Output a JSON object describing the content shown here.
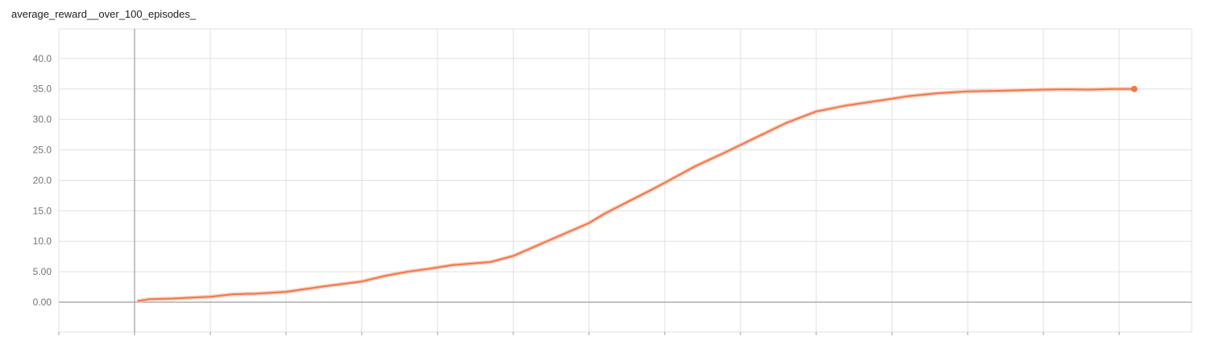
{
  "chart_data": {
    "type": "line",
    "title": "average_reward__over_100_episodes_",
    "xlabel": "",
    "ylabel": "",
    "ylim": [
      -5,
      45
    ],
    "yticks": [
      "0.00",
      "5.00",
      "10.0",
      "15.0",
      "20.0",
      "25.0",
      "30.0",
      "35.0",
      "40.0"
    ],
    "xlim": [
      -1,
      14
    ],
    "xtick_label_visible": false,
    "grid": true,
    "legend": "none",
    "colors": {
      "line": "#f4754a",
      "smoothed_shadow": "#f9c6b2",
      "grid": "#e0e0e0",
      "zero_axis": "#9e9e9e"
    },
    "series": [
      {
        "x": [
          0.05,
          0.2,
          0.5,
          1.0,
          1.3,
          1.6,
          2.0,
          2.5,
          3.0,
          3.3,
          3.6,
          3.9,
          4.2,
          4.7,
          5.0,
          5.5,
          6.0,
          6.2,
          6.5,
          6.8,
          7.0,
          7.4,
          7.8,
          8.2,
          8.6,
          9.0,
          9.4,
          9.9,
          10.2,
          10.6,
          11.0,
          11.4,
          11.7,
          12.0,
          12.3,
          12.6,
          12.9,
          13.2
        ],
        "y": [
          0.2,
          0.5,
          0.6,
          0.9,
          1.3,
          1.4,
          1.7,
          2.6,
          3.4,
          4.3,
          5.0,
          5.5,
          6.1,
          6.6,
          7.6,
          10.3,
          13.0,
          14.5,
          16.4,
          18.3,
          19.6,
          22.3,
          24.6,
          27.0,
          29.4,
          31.3,
          32.3,
          33.2,
          33.8,
          34.3,
          34.6,
          34.7,
          34.8,
          34.9,
          34.95,
          34.9,
          35.0,
          35.0
        ]
      }
    ]
  }
}
